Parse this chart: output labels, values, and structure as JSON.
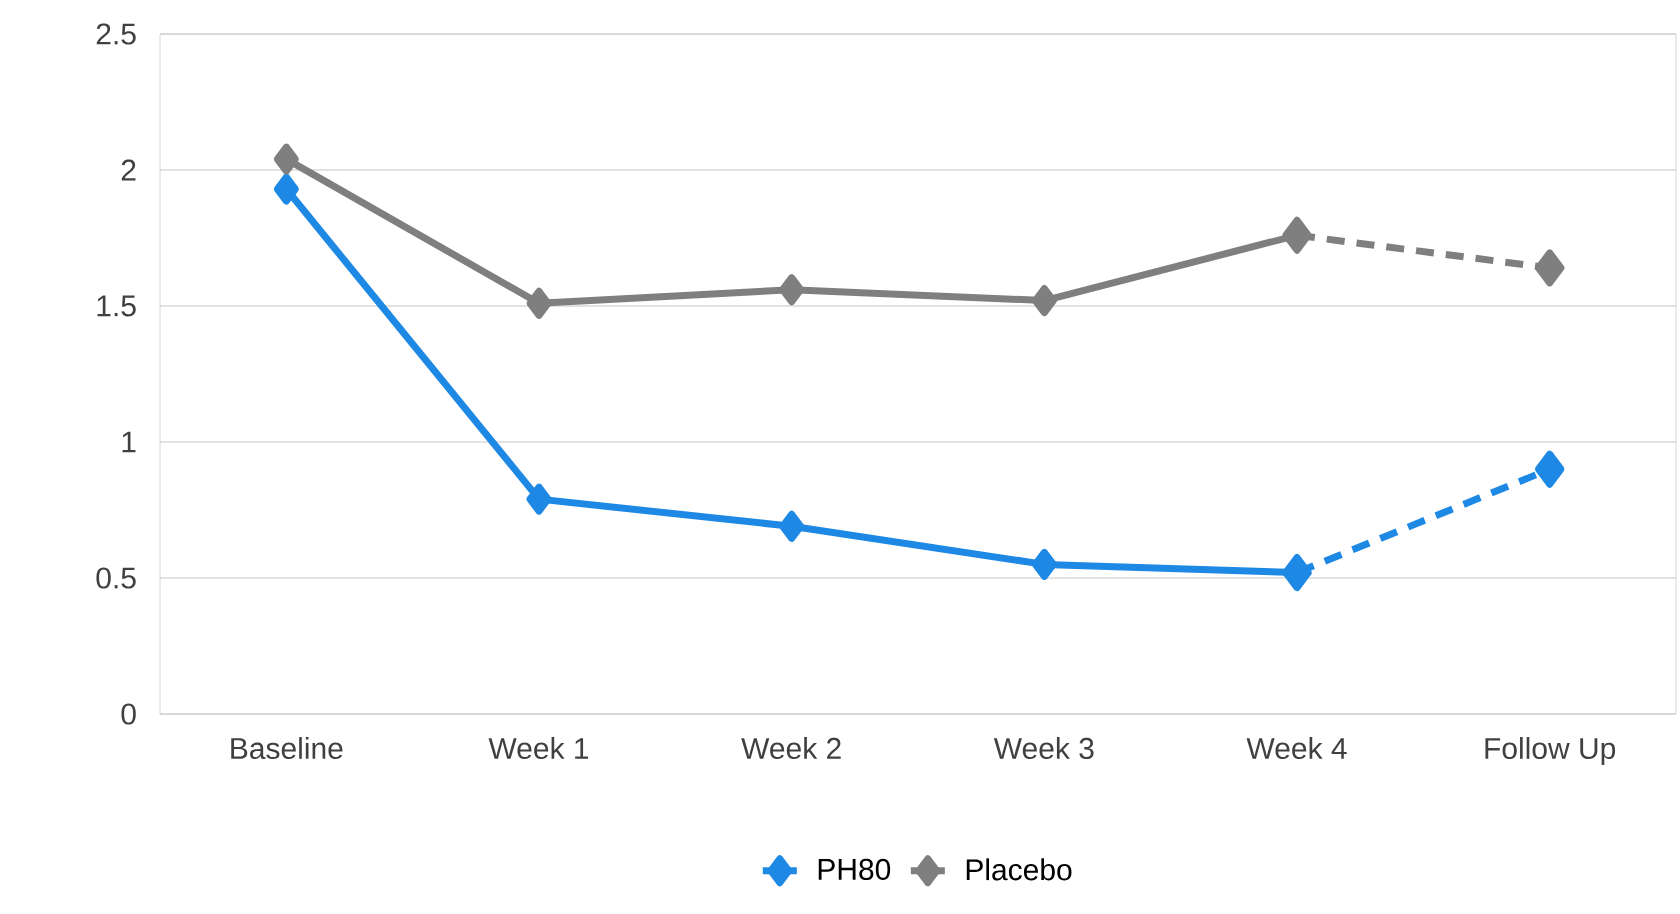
{
  "chart_data": {
    "type": "line",
    "categories": [
      "Baseline",
      "Week 1",
      "Week 2",
      "Week 3",
      "Week 4",
      "Follow Up"
    ],
    "series": [
      {
        "color": "#1e88e5",
        "line_style": "dashed",
        "values": [
          null,
          null,
          null,
          null,
          0.52,
          0.9
        ]
      },
      {
        "color": "#7f7f7f",
        "line_style": "dashed",
        "values": [
          null,
          null,
          null,
          null,
          1.76,
          1.64
        ]
      },
      {
        "name": "PH80",
        "color": "#1e88e5",
        "line_style": "solid",
        "values": [
          1.93,
          0.79,
          0.69,
          0.55,
          0.52,
          null
        ]
      },
      {
        "name": "Placebo",
        "color": "#7f7f7f",
        "line_style": "solid",
        "values": [
          2.04,
          1.51,
          1.56,
          1.52,
          1.76,
          null
        ]
      }
    ],
    "ylim": [
      0,
      2.5
    ],
    "yticks": [
      0,
      0.5,
      1,
      1.5,
      2,
      2.5
    ],
    "grid": "y",
    "legend": "bottom",
    "marker": "diamond"
  }
}
